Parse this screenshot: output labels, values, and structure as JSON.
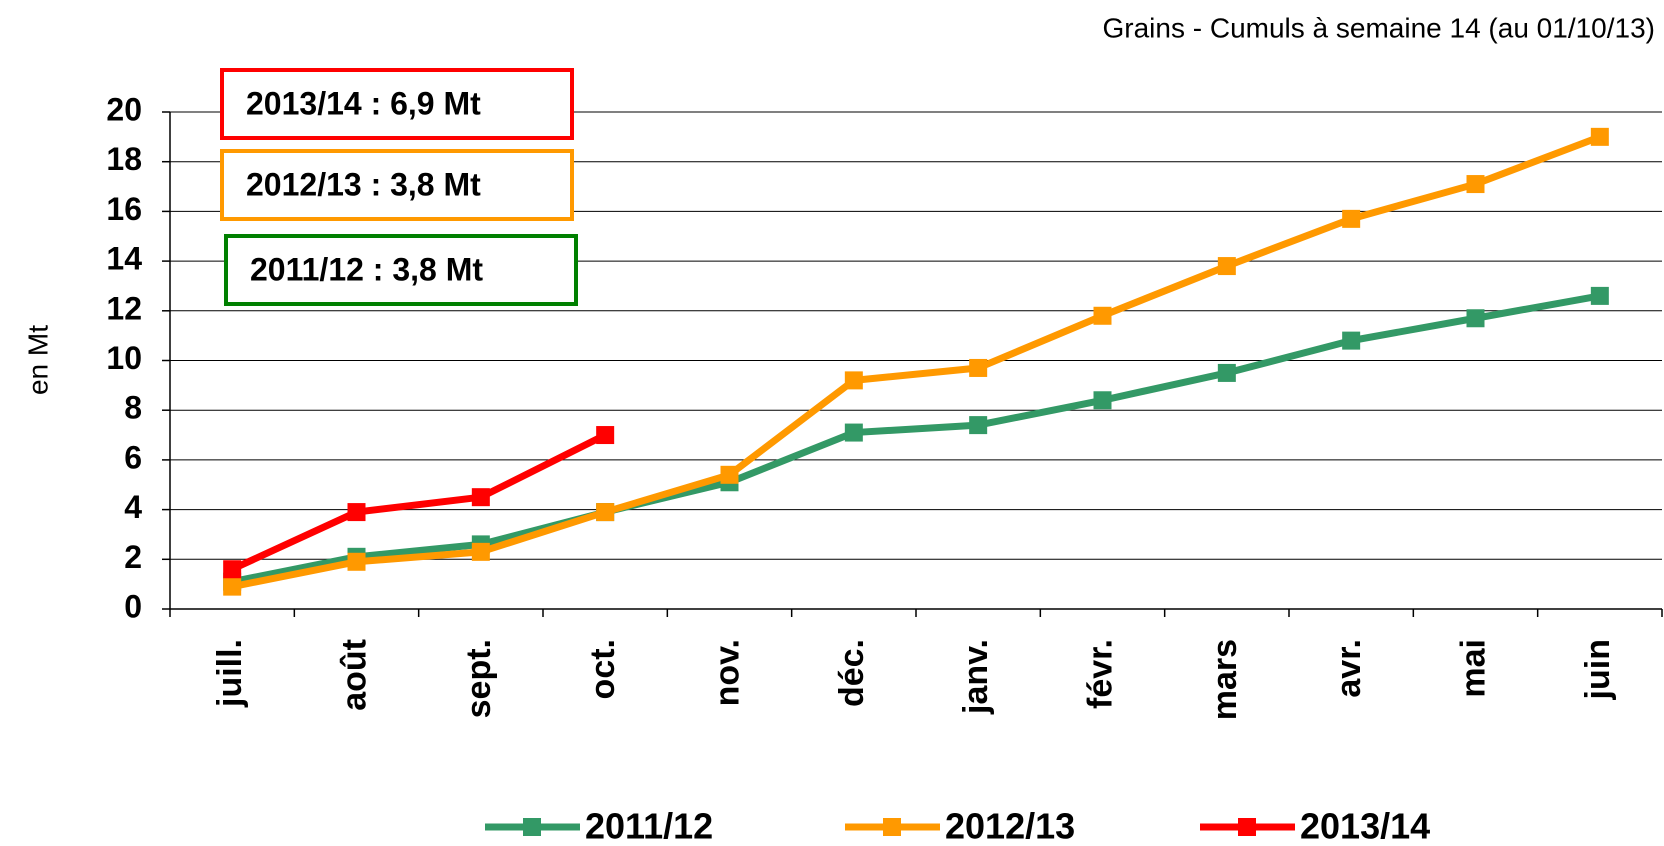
{
  "chart_data": {
    "type": "line",
    "title": "Grains - Cumuls à semaine 14 (au 01/10/13)",
    "y_label": "en Mt",
    "categories": [
      "juill.",
      "août",
      "sept.",
      "oct.",
      "nov.",
      "déc.",
      "janv.",
      "févr.",
      "mars",
      "avr.",
      "mai",
      "juin"
    ],
    "series": [
      {
        "name": "2011/12",
        "color": "#339966",
        "values": [
          1.1,
          2.1,
          2.6,
          3.9,
          5.1,
          7.1,
          7.4,
          8.4,
          9.5,
          10.8,
          11.7,
          12.6
        ]
      },
      {
        "name": "2012/13",
        "color": "#ff9900",
        "values": [
          0.9,
          1.9,
          2.3,
          3.9,
          5.4,
          9.2,
          9.7,
          11.8,
          13.8,
          15.7,
          17.1,
          19.0
        ]
      },
      {
        "name": "2013/14",
        "color": "#ff0000",
        "values": [
          1.6,
          3.9,
          4.5,
          7.0,
          null,
          null,
          null,
          null,
          null,
          null,
          null,
          null
        ]
      }
    ],
    "annotations": [
      {
        "text": "2013/14 : 6,9 Mt",
        "color": "#ff0000"
      },
      {
        "text": "2012/13 : 3,8 Mt",
        "color": "#ff9900"
      },
      {
        "text": "2011/12 : 3,8 Mt",
        "color": "#008000"
      }
    ],
    "ylim": [
      0,
      20
    ],
    "yticks": [
      0,
      2,
      4,
      6,
      8,
      10,
      12,
      14,
      16,
      18,
      20
    ],
    "grid": true,
    "legend": "bottom"
  }
}
